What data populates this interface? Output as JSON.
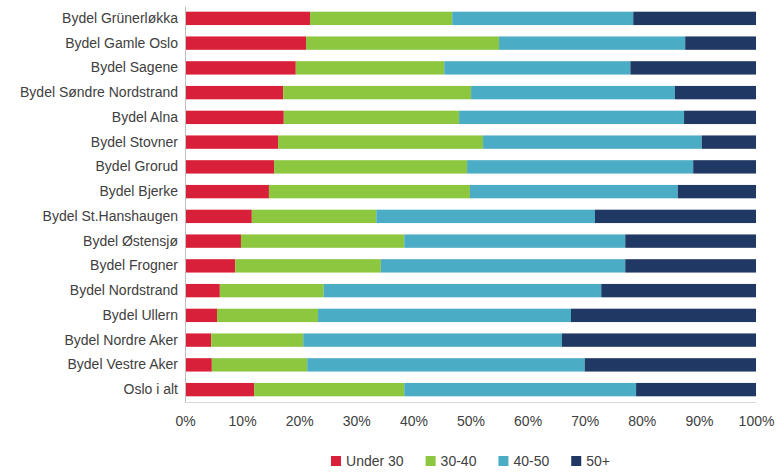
{
  "chart_data": {
    "type": "bar",
    "orientation": "horizontal",
    "stacked": true,
    "grid": false,
    "legend": "bottom",
    "categories": [
      "Bydel Grünerløkka",
      "Bydel Gamle Oslo",
      "Bydel Sagene",
      "Bydel Søndre Nordstrand",
      "Bydel Alna",
      "Bydel Stovner",
      "Bydel Grorud",
      "Bydel Bjerke",
      "Bydel St.Hanshaugen",
      "Bydel Østensjø",
      "Bydel Frogner",
      "Bydel Nordstrand",
      "Bydel Ullern",
      "Bydel Nordre Aker",
      "Bydel Vestre Aker",
      "Oslo i alt"
    ],
    "series": [
      {
        "name": "Under 30",
        "color": "#d9203a",
        "values": [
          21.9,
          21.2,
          19.4,
          17.2,
          17.3,
          16.3,
          15.6,
          14.7,
          11.7,
          9.8,
          8.8,
          6.1,
          5.6,
          4.6,
          4.7,
          12.1
        ]
      },
      {
        "name": "30-40",
        "color": "#8dc63f",
        "values": [
          24.9,
          33.8,
          26.0,
          32.9,
          30.7,
          35.9,
          33.8,
          35.2,
          21.8,
          28.6,
          25.5,
          18.2,
          17.7,
          16.1,
          16.7,
          26.3
        ]
      },
      {
        "name": "40-50",
        "color": "#4bacc6",
        "values": [
          31.7,
          32.6,
          32.6,
          35.7,
          39.4,
          38.3,
          39.6,
          36.4,
          38.3,
          38.7,
          42.8,
          48.6,
          44.3,
          45.3,
          48.6,
          40.6
        ]
      },
      {
        "name": "50+",
        "color": "#203864",
        "values": [
          21.5,
          12.4,
          22.0,
          14.2,
          12.6,
          9.5,
          11.0,
          13.7,
          28.2,
          22.9,
          22.9,
          27.1,
          32.4,
          34.0,
          30.0,
          21.0
        ]
      }
    ],
    "xlim": [
      0,
      100
    ],
    "xticks": [
      {
        "value": 0,
        "label": "0%"
      },
      {
        "value": 10,
        "label": "10%"
      },
      {
        "value": 20,
        "label": "20%"
      },
      {
        "value": 30,
        "label": "30%"
      },
      {
        "value": 40,
        "label": "40%"
      },
      {
        "value": 50,
        "label": "50%"
      },
      {
        "value": 60,
        "label": "60%"
      },
      {
        "value": 70,
        "label": "70%"
      },
      {
        "value": 80,
        "label": "80%"
      },
      {
        "value": 90,
        "label": "90%"
      },
      {
        "value": 100,
        "label": "100%"
      }
    ]
  }
}
